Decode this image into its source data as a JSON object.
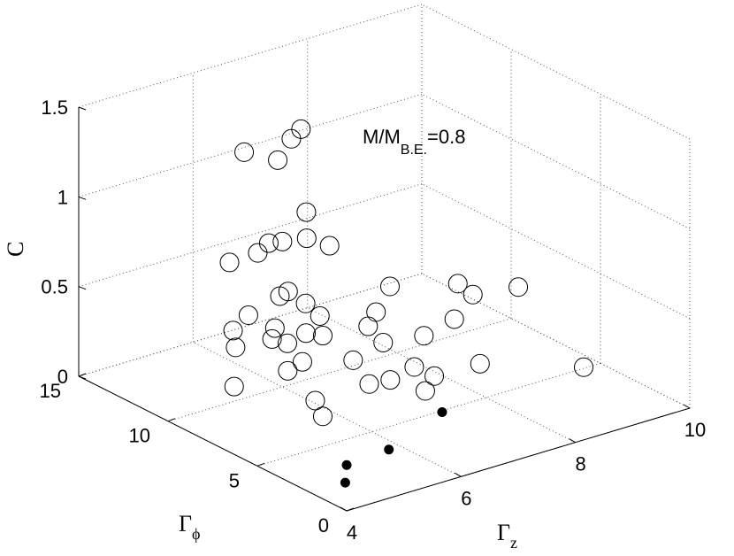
{
  "chart_data": {
    "type": "scatter",
    "title": "",
    "annotation": {
      "main": "M/M",
      "sub": "B.E.",
      "suffix": "=0.8"
    },
    "axes": {
      "x": {
        "label": "Γ",
        "sub": "z",
        "range": [
          4,
          10
        ],
        "ticks": [
          "4",
          "6",
          "8",
          "10"
        ]
      },
      "y": {
        "label": "Γ",
        "sub": "ϕ",
        "range": [
          0,
          15
        ],
        "ticks": [
          "0",
          "5",
          "10",
          "15"
        ]
      },
      "z": {
        "label": "C",
        "range": [
          0,
          1.5
        ],
        "ticks": [
          "0",
          "0.5",
          "1",
          "1.5"
        ]
      }
    },
    "grid": true,
    "series": [
      {
        "marker": "open-circle",
        "points": [
          [
            5.8,
            7.1,
            0.0
          ],
          [
            6.1,
            9.2,
            0.17
          ],
          [
            5.2,
            5.6,
            0.22
          ],
          [
            5.8,
            4.5,
            0.31
          ],
          [
            4.5,
            7.9,
            0.25
          ],
          [
            5.0,
            6.5,
            0.36
          ],
          [
            6.2,
            4.6,
            0.29
          ],
          [
            6.5,
            3.6,
            0.25
          ],
          [
            4.9,
            9.1,
            0.37
          ],
          [
            5.2,
            10.2,
            0.38
          ],
          [
            5.6,
            9.3,
            0.34
          ],
          [
            6.1,
            9.0,
            0.34
          ],
          [
            6.3,
            7.0,
            0.27
          ],
          [
            6.7,
            6.6,
            0.35
          ],
          [
            6.9,
            5.5,
            0.25
          ],
          [
            7.0,
            4.7,
            0.23
          ],
          [
            5.2,
            10.4,
            0.75
          ],
          [
            5.8,
            7.1,
            0.45
          ],
          [
            5.4,
            7.8,
            0.41
          ],
          [
            6.0,
            7.9,
            0.5
          ],
          [
            6.5,
            6.8,
            0.45
          ],
          [
            6.7,
            7.0,
            0.5
          ],
          [
            7.1,
            5.6,
            0.4
          ],
          [
            7.6,
            5.5,
            0.45
          ],
          [
            6.0,
            8.7,
            0.53
          ],
          [
            5.4,
            8.5,
            0.46
          ],
          [
            5.0,
            8.7,
            0.56
          ],
          [
            5.8,
            9.5,
            0.55
          ],
          [
            5.6,
            8.4,
            0.65
          ],
          [
            6.7,
            9.6,
            0.74
          ],
          [
            7.1,
            7.5,
            0.58
          ],
          [
            6.0,
            10.0,
            0.81
          ],
          [
            5.6,
            10.1,
            0.78
          ],
          [
            5.7,
            9.8,
            0.84
          ],
          [
            6.3,
            9.6,
            0.82
          ],
          [
            6.2,
            9.3,
            0.99
          ],
          [
            6.2,
            10.9,
            1.2
          ],
          [
            6.5,
            11.1,
            1.28
          ],
          [
            6.7,
            11.2,
            1.31
          ],
          [
            5.3,
            9.9,
            1.38
          ],
          [
            7.3,
            3.1,
            0.35
          ],
          [
            8.1,
            6.9,
            0.53
          ],
          [
            8.3,
            6.7,
            0.46
          ],
          [
            9.0,
            6.4,
            0.45
          ],
          [
            9.3,
            3.7,
            0.11
          ]
        ]
      },
      {
        "marker": "filled-dot",
        "points": [
          [
            4.6,
            2.0,
            0.0
          ],
          [
            5.0,
            3.2,
            0.0
          ],
          [
            5.8,
            3.4,
            0.0
          ],
          [
            7.2,
            4.9,
            0.0
          ]
        ]
      }
    ]
  }
}
